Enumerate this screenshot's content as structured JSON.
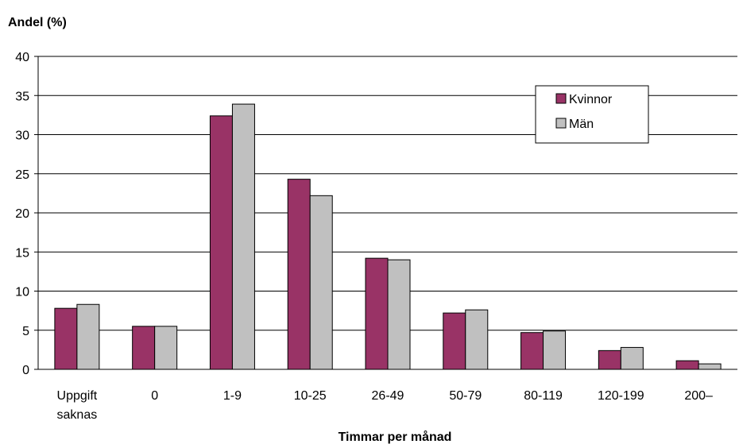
{
  "chart_data": {
    "type": "bar",
    "title": "",
    "ylabel": "Andel (%)",
    "xlabel": "Timmar per månad",
    "ylim": [
      0,
      40
    ],
    "yticks": [
      "0",
      "5",
      "10",
      "15",
      "20",
      "25",
      "30",
      "35",
      "40"
    ],
    "grid": true,
    "legend_position": "top-right",
    "categories": [
      [
        "Uppgift",
        "saknas"
      ],
      [
        "0"
      ],
      [
        "1-9"
      ],
      [
        "10-25"
      ],
      [
        "26-49"
      ],
      [
        "50-79"
      ],
      [
        "80-119"
      ],
      [
        "120-199"
      ],
      [
        "200–"
      ]
    ],
    "series": [
      {
        "name": "Kvinnor",
        "color": "#993366",
        "values": [
          7.8,
          5.5,
          32.4,
          24.3,
          14.2,
          7.2,
          4.7,
          2.4,
          1.1
        ]
      },
      {
        "name": "Män",
        "color": "#c0c0c0",
        "values": [
          8.3,
          5.5,
          33.9,
          22.2,
          14.0,
          7.6,
          4.9,
          2.8,
          0.7
        ]
      }
    ]
  }
}
